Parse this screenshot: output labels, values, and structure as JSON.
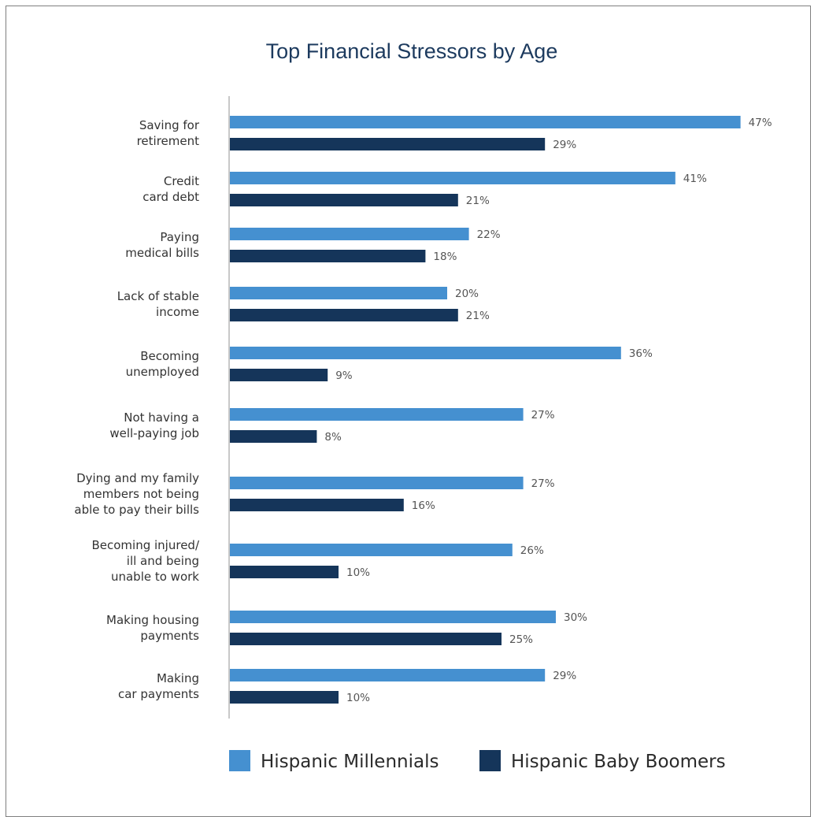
{
  "chart_data": {
    "type": "bar",
    "orientation": "horizontal",
    "title": "Top Financial Stressors by Age",
    "xlabel": "",
    "ylabel": "",
    "value_suffix": "%",
    "xlim": [
      0,
      50
    ],
    "grid": false,
    "legend_position": "bottom",
    "categories": [
      [
        "Saving for",
        "retirement"
      ],
      [
        "Credit",
        "card debt"
      ],
      [
        "Paying",
        "medical bills"
      ],
      [
        "Lack of stable",
        "income"
      ],
      [
        "Becoming",
        "unemployed"
      ],
      [
        "Not having a",
        "well-paying job"
      ],
      [
        "Dying and my family",
        "members not being",
        "able to pay their bills"
      ],
      [
        "Becoming injured/",
        "ill and being",
        "unable to work"
      ],
      [
        "Making housing",
        "payments"
      ],
      [
        "Making",
        "car payments"
      ]
    ],
    "series": [
      {
        "name": "Hispanic Millennials",
        "color": "#4590d0",
        "values": [
          47,
          41,
          22,
          20,
          36,
          27,
          27,
          26,
          30,
          29
        ]
      },
      {
        "name": "Hispanic Baby Boomers",
        "color": "#15355a",
        "values": [
          29,
          21,
          18,
          21,
          9,
          8,
          16,
          10,
          25,
          10
        ]
      }
    ]
  }
}
